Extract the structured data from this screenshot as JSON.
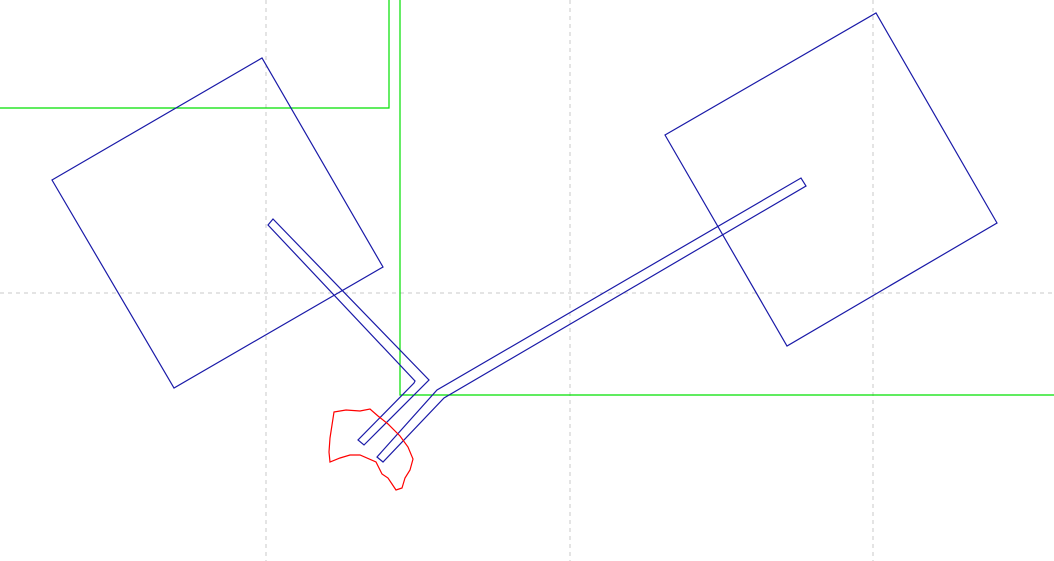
{
  "view": {
    "grid_visible": true
  },
  "colors": {
    "background": "#ffffff",
    "grid": "#c8c8c8",
    "boundary": "#00e000",
    "body": "#1a1aa8",
    "obstacle": "#ff0000"
  },
  "scene": {
    "boundaries": [
      {
        "name": "upper-left-boundary-outline"
      },
      {
        "name": "lower-right-boundary-outline"
      }
    ],
    "bodies": [
      {
        "name": "left-square-body"
      },
      {
        "name": "right-square-body"
      }
    ],
    "arms": [
      {
        "name": "left-jointed-arm"
      },
      {
        "name": "right-jointed-arm"
      }
    ],
    "obstacles": [
      {
        "name": "red-obstacle-blob"
      }
    ]
  }
}
